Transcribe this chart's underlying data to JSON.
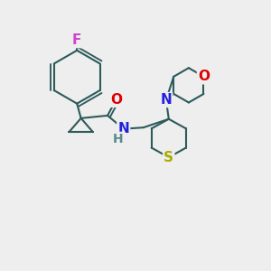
{
  "background_color": "#eeeeee",
  "bond_color": "#2d5a5a",
  "bond_width": 1.5,
  "atoms": {
    "F": {
      "color": "#cc44cc",
      "fontsize": 11
    },
    "O": {
      "color": "#dd0000",
      "fontsize": 11
    },
    "N": {
      "color": "#2222dd",
      "fontsize": 11
    },
    "S": {
      "color": "#aaaa00",
      "fontsize": 11
    },
    "NH": {
      "color_N": "#2222dd",
      "color_H": "#5a8a8a",
      "fontsize": 11
    }
  },
  "figsize": [
    3.0,
    3.0
  ],
  "dpi": 100
}
